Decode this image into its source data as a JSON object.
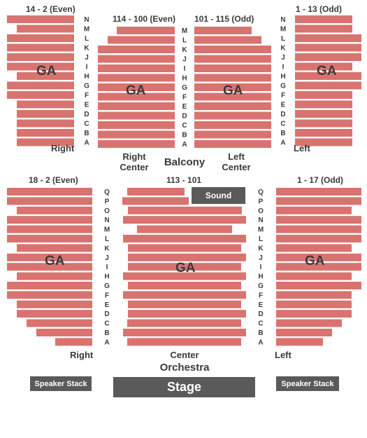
{
  "colors": {
    "seat": "#d9736f",
    "dark_box": "#5a5a5a",
    "text": "#3a3a3a",
    "background": "#ffffff"
  },
  "balcony": {
    "name": "Balcony",
    "rows": [
      "N",
      "M",
      "L",
      "K",
      "J",
      "I",
      "H",
      "G",
      "F",
      "E",
      "D",
      "C",
      "B",
      "A"
    ],
    "center_rows": [
      "M",
      "L",
      "K",
      "J",
      "I",
      "H",
      "G",
      "F",
      "E",
      "D",
      "C",
      "B",
      "A"
    ],
    "right": {
      "title": "14 - 2 (Even)",
      "ga": "GA",
      "label": "Right"
    },
    "right_center": {
      "title": "114 - 100 (Even)",
      "ga": "GA",
      "label": "Right Center"
    },
    "left_center": {
      "title": "101 - 115 (Odd)",
      "ga": "GA",
      "label": "Left Center"
    },
    "left": {
      "title": "1 - 13 (Odd)",
      "ga": "GA",
      "label": "Left"
    }
  },
  "orchestra": {
    "name": "Orchestra",
    "rows": [
      "Q",
      "P",
      "O",
      "N",
      "M",
      "L",
      "K",
      "J",
      "I",
      "H",
      "G",
      "F",
      "E",
      "D",
      "C",
      "B",
      "A"
    ],
    "right": {
      "title": "18 - 2 (Even)",
      "ga": "GA",
      "label": "Right"
    },
    "center": {
      "title": "113 - 101",
      "ga": "GA",
      "label": "Center"
    },
    "left": {
      "title": "1 - 17 (Odd)",
      "ga": "GA",
      "label": "Left"
    },
    "sound": "Sound"
  },
  "speaker_left": "Speaker Stack",
  "speaker_right": "Speaker Stack",
  "stage": "Stage"
}
